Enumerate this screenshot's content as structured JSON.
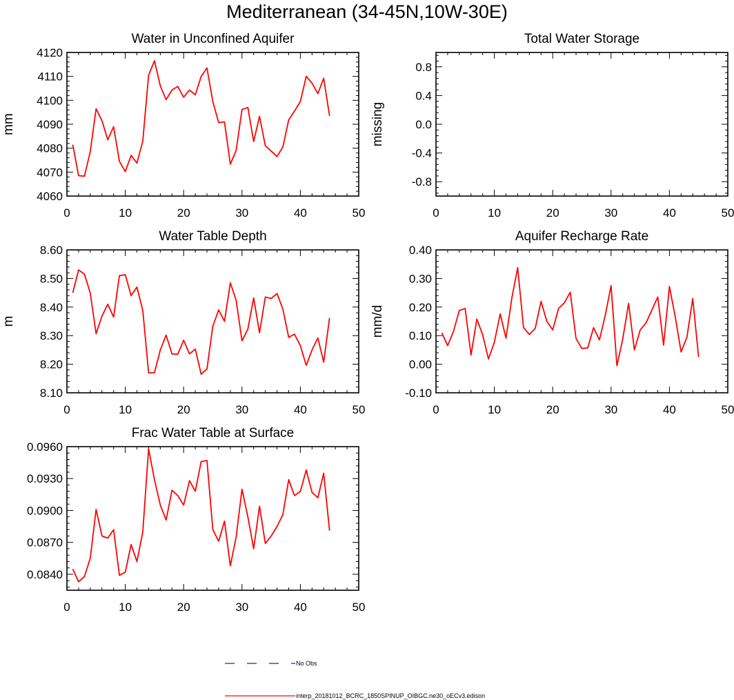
{
  "figure": {
    "title": "Mediterranean (34-45N,10W-30E)"
  },
  "legend": {
    "entries": [
      {
        "label": "No Obs",
        "color": "#1f1fbf",
        "style": "dashed"
      },
      {
        "label": "interp_20181012_BCRC_1850SPINUP_OIBGC.ne30_oECv3.edison",
        "color": "#ff0000",
        "style": "solid"
      }
    ]
  },
  "chart_data": [
    {
      "type": "line",
      "title": "Water in Unconfined Aquifer",
      "ylabel": "mm",
      "xlim": [
        0,
        50
      ],
      "ylim": [
        4060,
        4120
      ],
      "xticks": [
        "0",
        "10",
        "20",
        "30",
        "40",
        "50"
      ],
      "yticks": [
        "4060",
        "4070",
        "4080",
        "4090",
        "4100",
        "4110",
        "4120"
      ],
      "grid": false,
      "series": [
        {
          "color": "#ff0000",
          "x": [
            1,
            2,
            3,
            4,
            5,
            6,
            7,
            8,
            9,
            10,
            11,
            12,
            13,
            14,
            15,
            16,
            17,
            18,
            19,
            20,
            21,
            22,
            23,
            24,
            25,
            26,
            27,
            28,
            29,
            30,
            31,
            32,
            33,
            34,
            35,
            36,
            37,
            38,
            39,
            40,
            41,
            42,
            43,
            44,
            45
          ],
          "values": [
            4081.5,
            4068.5,
            4068.3,
            4078.5,
            4096.5,
            4091.5,
            4083.5,
            4089,
            4074.5,
            4070.2,
            4077,
            4073.8,
            4083,
            4110.5,
            4116.5,
            4106,
            4100.3,
            4104.3,
            4105.8,
            4101.3,
            4104.3,
            4102.3,
            4110,
            4113.5,
            4099.5,
            4090.7,
            4091,
            4073.3,
            4079,
            4096.2,
            4097,
            4082.8,
            4093.3,
            4081,
            4078.8,
            4076.5,
            4080.5,
            4091.8,
            4095.5,
            4099.5,
            4110,
            4107.2,
            4102.8,
            4109.2,
            4093.5
          ]
        }
      ]
    },
    {
      "type": "line",
      "title": "Total Water Storage",
      "ylabel": "missing",
      "xlim": [
        0,
        50
      ],
      "ylim": [
        -1,
        1
      ],
      "xticks": [
        "0",
        "10",
        "20",
        "30",
        "40",
        "50"
      ],
      "yticks": [
        "-0.8",
        "-0.4",
        "0.0",
        "0.4",
        "0.8"
      ],
      "yticks_values": [
        -0.8,
        -0.4,
        0.0,
        0.4,
        0.8
      ],
      "grid": false,
      "series": []
    },
    {
      "type": "line",
      "title": "Water Table Depth",
      "ylabel": "m",
      "xlim": [
        0,
        50
      ],
      "ylim": [
        8.1,
        8.6
      ],
      "xticks": [
        "0",
        "10",
        "20",
        "30",
        "40",
        "50"
      ],
      "yticks": [
        "8.10",
        "8.20",
        "8.30",
        "8.40",
        "8.50",
        "8.60"
      ],
      "grid": false,
      "series": [
        {
          "color": "#ff0000",
          "x": [
            1,
            2,
            3,
            4,
            5,
            6,
            7,
            8,
            9,
            10,
            11,
            12,
            13,
            14,
            15,
            16,
            17,
            18,
            19,
            20,
            21,
            22,
            23,
            24,
            25,
            26,
            27,
            28,
            29,
            30,
            31,
            32,
            33,
            34,
            35,
            36,
            37,
            38,
            39,
            40,
            41,
            42,
            43,
            44,
            45
          ],
          "values": [
            8.45,
            8.53,
            8.515,
            8.45,
            8.307,
            8.368,
            8.41,
            8.365,
            8.51,
            8.513,
            8.44,
            8.47,
            8.388,
            8.17,
            8.17,
            8.25,
            8.302,
            8.236,
            8.235,
            8.284,
            8.236,
            8.253,
            8.165,
            8.183,
            8.333,
            8.39,
            8.35,
            8.485,
            8.424,
            8.282,
            8.323,
            8.432,
            8.31,
            8.435,
            8.43,
            8.447,
            8.393,
            8.294,
            8.305,
            8.265,
            8.196,
            8.25,
            8.292,
            8.207,
            8.362
          ]
        }
      ]
    },
    {
      "type": "line",
      "title": "Aquifer Recharge Rate",
      "ylabel": "mm/d",
      "xlim": [
        0,
        50
      ],
      "ylim": [
        -0.1,
        0.4
      ],
      "xticks": [
        "0",
        "10",
        "20",
        "30",
        "40",
        "50"
      ],
      "yticks": [
        "-0.10",
        "0.00",
        "0.10",
        "0.20",
        "0.30",
        "0.40"
      ],
      "grid": false,
      "series": [
        {
          "color": "#ff0000",
          "x": [
            1,
            2,
            3,
            4,
            5,
            6,
            7,
            8,
            9,
            10,
            11,
            12,
            13,
            14,
            15,
            16,
            17,
            18,
            19,
            20,
            21,
            22,
            23,
            24,
            25,
            26,
            27,
            28,
            29,
            30,
            31,
            32,
            33,
            34,
            35,
            36,
            37,
            38,
            39,
            40,
            41,
            42,
            43,
            44,
            45
          ],
          "values": [
            0.11,
            0.065,
            0.115,
            0.188,
            0.195,
            0.032,
            0.158,
            0.103,
            0.018,
            0.077,
            0.176,
            0.091,
            0.232,
            0.338,
            0.128,
            0.104,
            0.125,
            0.22,
            0.15,
            0.12,
            0.195,
            0.215,
            0.252,
            0.09,
            0.055,
            0.057,
            0.128,
            0.085,
            0.17,
            0.275,
            -0.005,
            0.088,
            0.213,
            0.05,
            0.12,
            0.145,
            0.19,
            0.235,
            0.067,
            0.272,
            0.165,
            0.043,
            0.095,
            0.23,
            0.025
          ]
        }
      ]
    },
    {
      "type": "line",
      "title": "Frac Water Table at Surface",
      "ylabel": "",
      "xlim": [
        0,
        50
      ],
      "ylim": [
        0.0825,
        0.096
      ],
      "xticks": [
        "0",
        "10",
        "20",
        "30",
        "40",
        "50"
      ],
      "yticks": [
        "0.0840",
        "0.0870",
        "0.0900",
        "0.0930",
        "0.0960"
      ],
      "yticks_values": [
        0.084,
        0.087,
        0.09,
        0.093,
        0.096
      ],
      "grid": false,
      "series": [
        {
          "color": "#ff0000",
          "x": [
            1,
            2,
            3,
            4,
            5,
            6,
            7,
            8,
            9,
            10,
            11,
            12,
            13,
            14,
            15,
            16,
            17,
            18,
            19,
            20,
            21,
            22,
            23,
            24,
            25,
            26,
            27,
            28,
            29,
            30,
            31,
            32,
            33,
            34,
            35,
            36,
            37,
            38,
            39,
            40,
            41,
            42,
            43,
            44,
            45
          ],
          "values": [
            0.0845,
            0.0833,
            0.0838,
            0.0855,
            0.0901,
            0.0876,
            0.0874,
            0.0882,
            0.0839,
            0.0842,
            0.0868,
            0.0852,
            0.088,
            0.0958,
            0.0929,
            0.0905,
            0.0891,
            0.0919,
            0.0914,
            0.0905,
            0.0928,
            0.0918,
            0.0946,
            0.0947,
            0.0882,
            0.0871,
            0.089,
            0.0848,
            0.0875,
            0.092,
            0.0894,
            0.0864,
            0.0904,
            0.0869,
            0.0876,
            0.0885,
            0.0896,
            0.0929,
            0.0914,
            0.0918,
            0.0938,
            0.0917,
            0.0912,
            0.0935,
            0.0881
          ]
        }
      ]
    }
  ]
}
